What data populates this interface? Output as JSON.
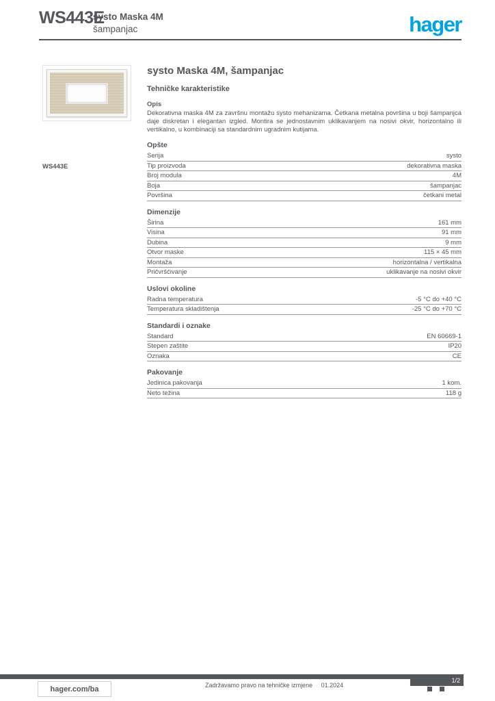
{
  "header": {
    "reference": "WS443E",
    "product_line1": "systo Maska 4M",
    "product_line2": "šampanjac",
    "logo_text": "hager"
  },
  "product": {
    "image_caption": "WS443E"
  },
  "main": {
    "title": "systo Maska 4M, šampanjac",
    "subtitle": "Tehničke karakteristike",
    "description_label": "Opis",
    "description": "Dekorativna maska 4M za završnu montažu systo mehanizama. Četkana metalna površina u boji šampanjca daje diskretan i elegantan izgled. Montira se jednostavnim uklikavanjem na nosivi okvir, horizontalno ili vertikalno, u kombinaciji sa standardnim ugradnim kutijama."
  },
  "sections": [
    {
      "title": "Opšte",
      "rows": [
        {
          "label": "Serija",
          "value": "systo"
        },
        {
          "label": "Tip proizvoda",
          "value": "dekorativna maska"
        },
        {
          "label": "Broj modula",
          "value": "4M"
        },
        {
          "label": "Boja",
          "value": "šampanjac"
        },
        {
          "label": "Površina",
          "value": "četkani metal"
        }
      ]
    },
    {
      "title": "Dimenzije",
      "rows": [
        {
          "label": "Širina",
          "value": "161 mm"
        },
        {
          "label": "Visina",
          "value": "91 mm"
        },
        {
          "label": "Dubina",
          "value": "9 mm"
        },
        {
          "label": "Otvor maske",
          "value": "115 × 45 mm"
        },
        {
          "label": "Montaža",
          "value": "horizontalna / vertikalna"
        },
        {
          "label": "Pričvršćivanje",
          "value": "uklikavanje na nosivi okvir"
        }
      ]
    },
    {
      "title": "Uslovi okoline",
      "rows": [
        {
          "label": "Radna temperatura",
          "value": "-5 °C do +40 °C"
        },
        {
          "label": "Temperatura skladištenja",
          "value": "-25 °C do +70 °C"
        }
      ]
    },
    {
      "title": "Standardi i oznake",
      "rows": [
        {
          "label": "Standard",
          "value": "EN 60669-1"
        },
        {
          "label": "Stepen zaštite",
          "value": "IP20"
        },
        {
          "label": "Oznaka",
          "value": "CE"
        }
      ]
    },
    {
      "title": "Pakovanje",
      "rows": [
        {
          "label": "Jedinica pakovanja",
          "value": "1 kom."
        },
        {
          "label": "Neto težina",
          "value": "118 g"
        }
      ]
    }
  ],
  "footer": {
    "site": "hager.com/ba",
    "disclaimer": "Zadržavamo pravo na tehničke izmjene",
    "date": "01.2024",
    "page": "1/2"
  },
  "colors": {
    "brand_blue": "#00A3E0",
    "text_gray": "#55565A"
  }
}
